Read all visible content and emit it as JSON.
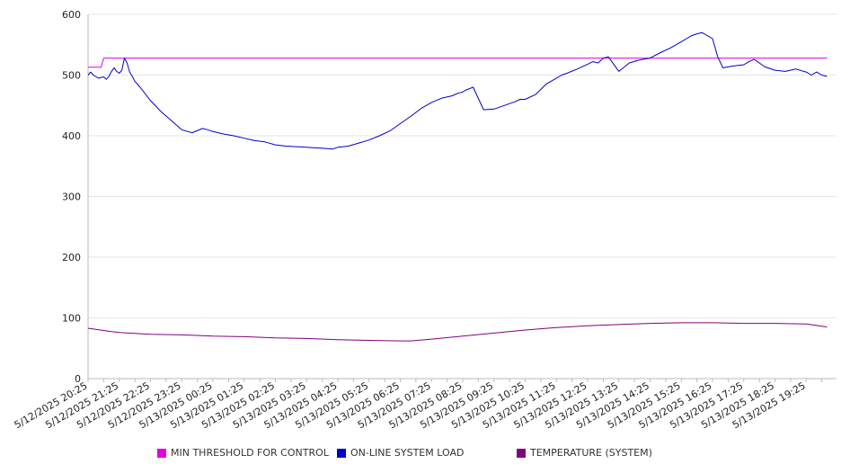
{
  "chart_data": {
    "type": "line",
    "title": "",
    "xlabel": "",
    "ylabel": "",
    "ylim": [
      0,
      600
    ],
    "yticks": [
      0,
      100,
      200,
      300,
      400,
      500,
      600
    ],
    "x_tick_labels": [
      "5/12/2025 20:25",
      "5/12/2025 21:25",
      "5/12/2025 22:25",
      "5/12/2025 23:25",
      "5/13/2025 00:25",
      "5/13/2025 01:25",
      "5/13/2025 02:25",
      "5/13/2025 03:25",
      "5/13/2025 04:25",
      "5/13/2025 05:25",
      "5/13/2025 06:25",
      "5/13/2025 07:25",
      "5/13/2025 08:25",
      "5/13/2025 09:25",
      "5/13/2025 10:25",
      "5/13/2025 11:25",
      "5/13/2025 12:25",
      "5/13/2025 13:25",
      "5/13/2025 14:25",
      "5/13/2025 15:25",
      "5/13/2025 16:25",
      "5/13/2025 17:25",
      "5/13/2025 18:25",
      "5/13/2025 19:25"
    ],
    "grid": "horizontal",
    "legend_position": "bottom",
    "series": [
      {
        "name": "MIN THRESHOLD FOR CONTROL",
        "color": "#e000e0",
        "x": [
          "5/12/2025 20:25",
          "5/12/2025 20:50",
          "5/12/2025 20:55",
          "5/13/2025 20:05"
        ],
        "values": [
          513,
          513,
          528,
          528
        ]
      },
      {
        "name": "ON-LINE SYSTEM LOAD",
        "color": "#0000cc",
        "x": [
          "5/12/2025 20:25",
          "5/12/2025 20:30",
          "5/12/2025 20:35",
          "5/12/2025 20:45",
          "5/12/2025 20:55",
          "5/12/2025 21:00",
          "5/12/2025 21:05",
          "5/12/2025 21:10",
          "5/12/2025 21:15",
          "5/12/2025 21:20",
          "5/12/2025 21:25",
          "5/12/2025 21:30",
          "5/12/2025 21:35",
          "5/12/2025 21:40",
          "5/12/2025 21:45",
          "5/12/2025 21:50",
          "5/12/2025 21:55",
          "5/12/2025 22:05",
          "5/12/2025 22:25",
          "5/12/2025 22:45",
          "5/12/2025 23:05",
          "5/12/2025 23:25",
          "5/12/2025 23:45",
          "5/13/2025 00:05",
          "5/13/2025 00:15",
          "5/13/2025 00:25",
          "5/13/2025 00:35",
          "5/13/2025 00:45",
          "5/13/2025 01:05",
          "5/13/2025 01:25",
          "5/13/2025 01:45",
          "5/13/2025 02:05",
          "5/13/2025 02:25",
          "5/13/2025 02:45",
          "5/13/2025 03:05",
          "5/13/2025 03:25",
          "5/13/2025 03:45",
          "5/13/2025 04:05",
          "5/13/2025 04:15",
          "5/13/2025 04:25",
          "5/13/2025 04:45",
          "5/13/2025 05:05",
          "5/13/2025 05:25",
          "5/13/2025 05:45",
          "5/13/2025 06:05",
          "5/13/2025 06:25",
          "5/13/2025 06:45",
          "5/13/2025 07:05",
          "5/13/2025 07:25",
          "5/13/2025 07:45",
          "5/13/2025 08:05",
          "5/13/2025 08:15",
          "5/13/2025 08:25",
          "5/13/2025 08:30",
          "5/13/2025 08:45",
          "5/13/2025 09:05",
          "5/13/2025 09:25",
          "5/13/2025 09:45",
          "5/13/2025 10:05",
          "5/13/2025 10:15",
          "5/13/2025 10:25",
          "5/13/2025 10:45",
          "5/13/2025 11:05",
          "5/13/2025 11:25",
          "5/13/2025 11:35",
          "5/13/2025 11:45",
          "5/13/2025 12:05",
          "5/13/2025 12:25",
          "5/13/2025 12:35",
          "5/13/2025 12:45",
          "5/13/2025 12:55",
          "5/13/2025 13:05",
          "5/13/2025 13:25",
          "5/13/2025 13:45",
          "5/13/2025 14:05",
          "5/13/2025 14:25",
          "5/13/2025 14:45",
          "5/13/2025 15:05",
          "5/13/2025 15:25",
          "5/13/2025 15:35",
          "5/13/2025 15:45",
          "5/13/2025 15:55",
          "5/13/2025 16:05",
          "5/13/2025 16:25",
          "5/13/2025 16:35",
          "5/13/2025 16:45",
          "5/13/2025 17:05",
          "5/13/2025 17:25",
          "5/13/2025 17:35",
          "5/13/2025 17:45",
          "5/13/2025 18:05",
          "5/13/2025 18:25",
          "5/13/2025 18:45",
          "5/13/2025 19:05",
          "5/13/2025 19:25",
          "5/13/2025 19:35",
          "5/13/2025 19:45",
          "5/13/2025 19:55",
          "5/13/2025 20:05"
        ],
        "values": [
          500,
          505,
          500,
          495,
          497,
          493,
          498,
          506,
          512,
          506,
          503,
          508,
          528,
          520,
          505,
          498,
          490,
          480,
          458,
          440,
          425,
          410,
          405,
          412,
          410,
          407,
          405,
          403,
          400,
          396,
          392,
          390,
          385,
          383,
          382,
          381,
          380,
          379,
          378,
          381,
          383,
          388,
          393,
          400,
          408,
          420,
          432,
          445,
          455,
          462,
          466,
          470,
          472,
          475,
          480,
          443,
          444,
          450,
          456,
          460,
          460,
          468,
          485,
          495,
          500,
          503,
          510,
          518,
          522,
          520,
          528,
          530,
          506,
          520,
          525,
          528,
          537,
          545,
          555,
          560,
          565,
          568,
          570,
          560,
          530,
          512,
          515,
          517,
          522,
          526,
          514,
          508,
          506,
          510,
          505,
          500,
          505,
          500,
          498
        ]
      },
      {
        "name": "TEMPERATURE (SYSTEM)",
        "color": "#800080",
        "x": [
          "5/12/2025 20:25",
          "5/12/2025 21:05",
          "5/12/2025 21:25",
          "5/12/2025 22:25",
          "5/12/2025 23:25",
          "5/13/2025 00:25",
          "5/13/2025 01:25",
          "5/13/2025 02:25",
          "5/13/2025 03:25",
          "5/13/2025 04:25",
          "5/13/2025 05:25",
          "5/13/2025 06:25",
          "5/13/2025 06:45",
          "5/13/2025 07:25",
          "5/13/2025 08:25",
          "5/13/2025 09:25",
          "5/13/2025 10:25",
          "5/13/2025 11:25",
          "5/13/2025 12:25",
          "5/13/2025 13:25",
          "5/13/2025 14:25",
          "5/13/2025 15:25",
          "5/13/2025 16:25",
          "5/13/2025 17:25",
          "5/13/2025 18:25",
          "5/13/2025 19:25",
          "5/13/2025 20:05"
        ],
        "values": [
          83,
          78,
          76,
          73,
          72,
          70,
          69,
          67,
          66,
          64,
          63,
          62,
          62,
          65,
          70,
          75,
          80,
          84,
          87,
          89,
          91,
          92,
          92,
          91,
          91,
          90,
          85
        ]
      }
    ]
  }
}
